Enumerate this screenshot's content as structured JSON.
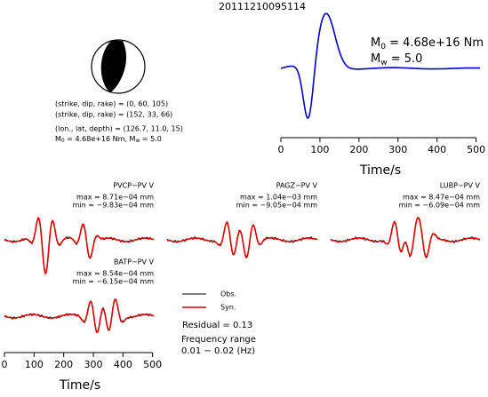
{
  "title": "20111210095114",
  "moment": {
    "m0_symbol": "M",
    "m0_sub": "0",
    "m0_text": " = 4.68e+16 Nm",
    "mw_symbol": "M",
    "mw_sub": "w",
    "mw_text": " = 5.0"
  },
  "solution": {
    "plane1": "(strike, dip, rake) = (0, 60, 105)",
    "plane2": "(strike, dip, rake) = (152, 33, 66)",
    "location": "(lon., lat, depth) = (126.7, 11.0, 15)",
    "m0_symbol": "M",
    "m0_sub": "0",
    "m0_text": " = 4.68e+16 Nm, M",
    "mw_sub": "w",
    "mw_text": " = 5.0"
  },
  "stf_axis": {
    "xlim": [
      0,
      510
    ],
    "xticks": [
      0,
      100,
      200,
      300,
      400,
      500
    ],
    "xlabel": "Time/s"
  },
  "wave_axis": {
    "xlim": [
      0,
      510
    ],
    "xticks": [
      0,
      100,
      200,
      300,
      400,
      500
    ],
    "xlabel": "Time/s"
  },
  "stations": [
    {
      "name": "PVCP−PV V",
      "max": "max = 8.71e−04 mm",
      "min": "min = −9.83e−04 mm"
    },
    {
      "name": "PAGZ−PV V",
      "max": "max = 1.04e−03 mm",
      "min": "min = −9.05e−04 mm"
    },
    {
      "name": "LUBP−PV V",
      "max": "max = 8.47e−04 mm",
      "min": "min = −6.09e−04 mm"
    },
    {
      "name": "BATP−PV V",
      "max": "max = 8.54e−04 mm",
      "min": "min = −6.15e−04 mm"
    }
  ],
  "legend": {
    "obs": "Obs.",
    "syn": "Syn.",
    "obs_color": "#000000",
    "syn_color": "#dd0000"
  },
  "residual": "Residual = 0.13",
  "frequency": {
    "label": "Frequency range",
    "range": "0.01 − 0.02 (Hz)"
  }
}
